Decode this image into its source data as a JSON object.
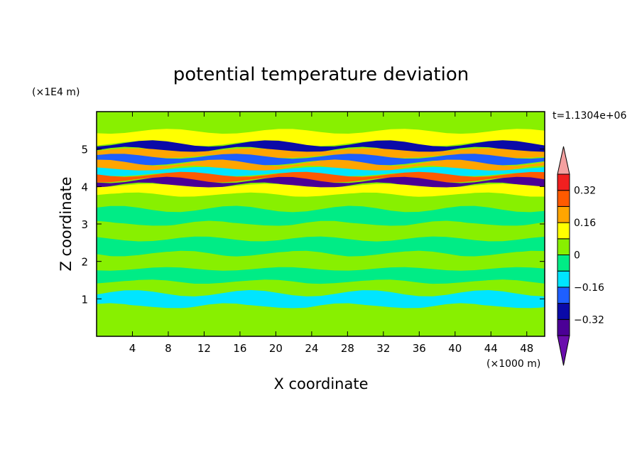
{
  "chart_data": {
    "type": "heatmap",
    "title": "potential temperature deviation",
    "xlabel": "X coordinate",
    "ylabel": "Z coordinate",
    "x_unit": "(×1000 m)",
    "y_unit": "(×1E4 m)",
    "time_label": "t=1.1304e+06",
    "xlim": [
      0,
      50
    ],
    "ylim": [
      0,
      6
    ],
    "x_ticks": [
      4,
      8,
      12,
      16,
      20,
      24,
      28,
      32,
      36,
      40,
      44,
      48
    ],
    "y_ticks": [
      1,
      2,
      3,
      4,
      5
    ],
    "colorbar": {
      "levels": [
        -0.4,
        -0.32,
        -0.24,
        -0.16,
        -0.08,
        0,
        0.08,
        0.16,
        0.24,
        0.32,
        0.4
      ],
      "tick_labels": [
        {
          "value": 0.32,
          "label": "0.32"
        },
        {
          "value": 0.16,
          "label": "0.16"
        },
        {
          "value": 0,
          "label": "0"
        },
        {
          "value": -0.16,
          "label": "−0.16"
        },
        {
          "value": -0.32,
          "label": "−0.32"
        }
      ],
      "colors": [
        "#6a0dad",
        "#4b0096",
        "#0a0aa8",
        "#1e5fff",
        "#00e5ff",
        "#00ec86",
        "#88f000",
        "#ffff00",
        "#ffa500",
        "#ff5a00",
        "#f02020",
        "#f4a0a0"
      ]
    },
    "bands": [
      {
        "z": 5.7,
        "value": 0.02
      },
      {
        "z": 5.25,
        "value": 0.1
      },
      {
        "z": 5.05,
        "value": -0.32
      },
      {
        "z": 4.9,
        "value": 0.2
      },
      {
        "z": 4.72,
        "value": -0.2
      },
      {
        "z": 4.55,
        "value": 0.18
      },
      {
        "z": 4.4,
        "value": -0.12
      },
      {
        "z": 4.25,
        "value": 0.28
      },
      {
        "z": 4.1,
        "value": -0.36
      },
      {
        "z": 3.95,
        "value": 0.12
      },
      {
        "z": 3.6,
        "value": 0.04
      },
      {
        "z": 3.2,
        "value": -0.03
      },
      {
        "z": 2.8,
        "value": 0.05
      },
      {
        "z": 2.4,
        "value": -0.04
      },
      {
        "z": 2.0,
        "value": 0.05
      },
      {
        "z": 1.6,
        "value": -0.02
      },
      {
        "z": 1.3,
        "value": 0.06
      },
      {
        "z": 1.0,
        "value": -0.1
      },
      {
        "z": 0.6,
        "value": 0.05
      },
      {
        "z": 0.2,
        "value": 0.02
      }
    ]
  }
}
